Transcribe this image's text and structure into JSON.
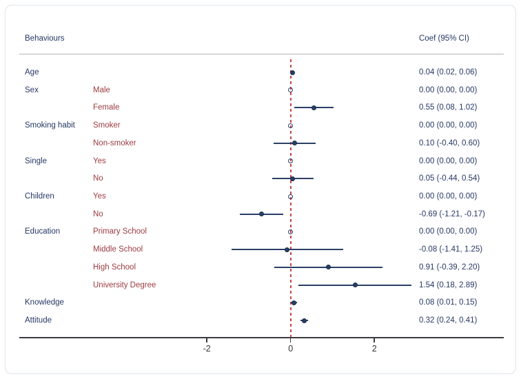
{
  "header": {
    "left": "Behaviours",
    "right": "Coef (95% CI)"
  },
  "colors": {
    "navy_text": "#253763",
    "marker_line": "#2a3f66",
    "maroon_text": "#9c3a40",
    "reference_red": "#bf4540",
    "axis": "#3a3b40"
  },
  "chart_data": {
    "type": "forest",
    "title": "",
    "xlabel": "",
    "grid": "off",
    "reference_line": 0,
    "x_tick_values": [
      -2,
      0,
      2
    ],
    "x_ticks": [
      "-2",
      "0",
      "2"
    ],
    "x_range_visible": [
      -6.5,
      5.1
    ],
    "rows": [
      {
        "group": "Age",
        "label": "",
        "coef": 0.04,
        "lo": 0.02,
        "hi": 0.06,
        "zero": false,
        "text": "0.04 (0.02, 0.06)"
      },
      {
        "group": "Sex",
        "label": "Male",
        "coef": 0.0,
        "lo": 0.0,
        "hi": 0.0,
        "zero": true,
        "text": "0.00 (0.00, 0.00)"
      },
      {
        "group": "",
        "label": "Female",
        "coef": 0.55,
        "lo": 0.08,
        "hi": 1.02,
        "zero": false,
        "text": "0.55 (0.08, 1.02)"
      },
      {
        "group": "Smoking habit",
        "label": "Smoker",
        "coef": 0.0,
        "lo": 0.0,
        "hi": 0.0,
        "zero": true,
        "text": "0.00 (0.00, 0.00)"
      },
      {
        "group": "",
        "label": "Non-smoker",
        "coef": 0.1,
        "lo": -0.4,
        "hi": 0.6,
        "zero": false,
        "text": "0.10 (-0.40, 0.60)"
      },
      {
        "group": "Single",
        "label": "Yes",
        "coef": 0.0,
        "lo": 0.0,
        "hi": 0.0,
        "zero": true,
        "text": "0.00 (0.00, 0.00)"
      },
      {
        "group": "",
        "label": "No",
        "coef": 0.05,
        "lo": -0.44,
        "hi": 0.54,
        "zero": false,
        "text": "0.05 (-0.44, 0.54)"
      },
      {
        "group": "Children",
        "label": "Yes",
        "coef": 0.0,
        "lo": 0.0,
        "hi": 0.0,
        "zero": true,
        "text": "0.00 (0.00, 0.00)"
      },
      {
        "group": "",
        "label": "No",
        "coef": -0.69,
        "lo": -1.21,
        "hi": -0.17,
        "zero": false,
        "text": "-0.69 (-1.21, -0.17)"
      },
      {
        "group": "Education",
        "label": "Primary School",
        "coef": 0.0,
        "lo": 0.0,
        "hi": 0.0,
        "zero": true,
        "text": "0.00 (0.00, 0.00)"
      },
      {
        "group": "",
        "label": "Middle School",
        "coef": -0.08,
        "lo": -1.41,
        "hi": 1.25,
        "zero": false,
        "text": "-0.08 (-1.41, 1.25)"
      },
      {
        "group": "",
        "label": "High School",
        "coef": 0.91,
        "lo": -0.39,
        "hi": 2.2,
        "zero": false,
        "text": "0.91 (-0.39, 2.20)"
      },
      {
        "group": "",
        "label": "University Degree",
        "coef": 1.54,
        "lo": 0.18,
        "hi": 2.89,
        "zero": false,
        "text": "1.54 (0.18, 2.89)"
      },
      {
        "group": "Knowledge",
        "label": "",
        "coef": 0.08,
        "lo": 0.01,
        "hi": 0.15,
        "zero": false,
        "text": "0.08 (0.01, 0.15)"
      },
      {
        "group": "Attitude",
        "label": "",
        "coef": 0.32,
        "lo": 0.24,
        "hi": 0.41,
        "zero": false,
        "text": "0.32 (0.24, 0.41)"
      }
    ]
  }
}
